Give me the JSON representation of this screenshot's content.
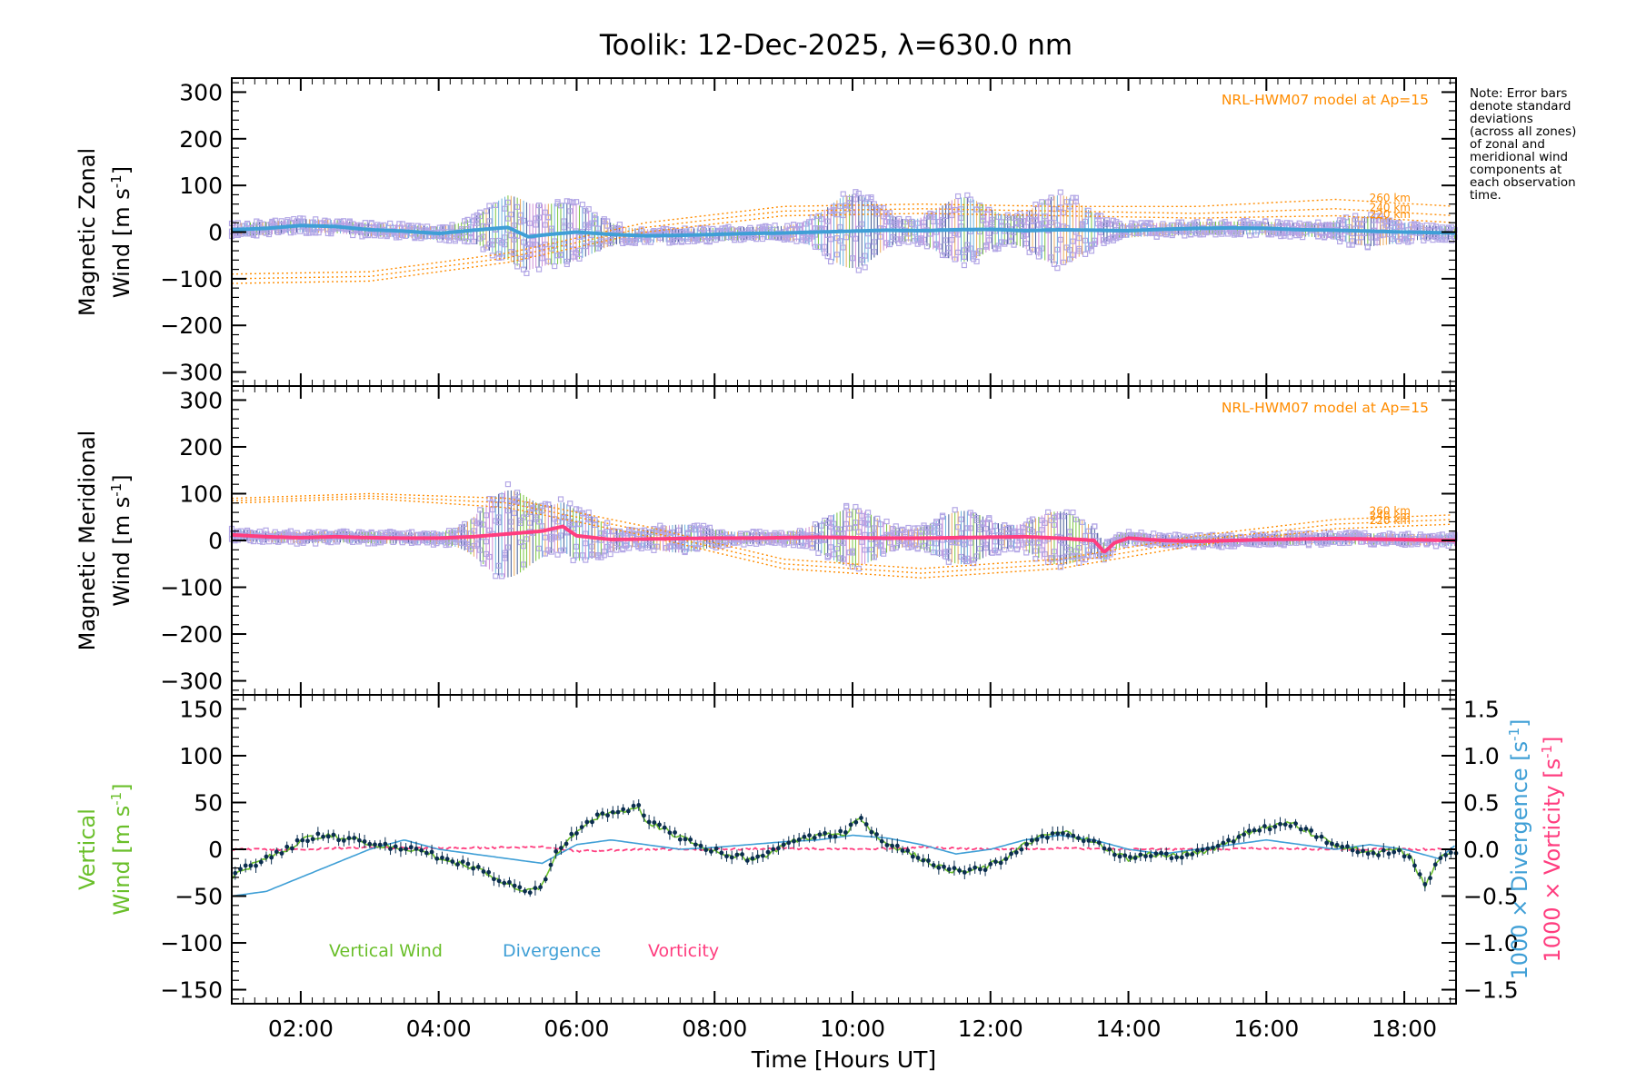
{
  "title": "Toolik: 12-Dec-2025, λ=630.0 nm",
  "note_lines": [
    "Note: Error bars",
    "denote standard",
    "deviations",
    "(across all zones)",
    "of zonal and",
    "meridional wind",
    "components at",
    "each observation",
    "time."
  ],
  "colors": {
    "zonal": "#3f9fd6",
    "meridional": "#ff3d7f",
    "vertical": "#6abf2a",
    "divergence": "#3f9fd6",
    "vorticity": "#ff3d7f",
    "model": "#ff8c00",
    "scatter": "#b3a7e6",
    "points": "#0b2e4f"
  },
  "chart_data": [
    {
      "type": "line",
      "panel": "zonal",
      "ylabel_line1": "Magnetic Zonal",
      "ylabel_line2": "Wind [m s",
      "ylabel_sup": "-1",
      "ylabel_close": "]",
      "ylim": [
        -330,
        330
      ],
      "xlim": [
        1.0,
        18.75
      ],
      "yticks": [
        300,
        200,
        100,
        0,
        -100,
        -200,
        -300
      ],
      "ytick_labels": [
        "300",
        "200",
        "100",
        "0",
        "−100",
        "−200",
        "−300"
      ],
      "model_label": "NRL-HWM07 model at Ap=15",
      "altitude_labels": [
        "260 km",
        "240 km",
        "220 km"
      ],
      "series": [
        {
          "name": "Zonal wind",
          "x": [
            1.0,
            1.5,
            2.0,
            2.5,
            3.0,
            3.5,
            4.0,
            4.5,
            5.0,
            5.3,
            5.6,
            6.0,
            6.5,
            7.0,
            7.5,
            8.0,
            8.5,
            9.0,
            9.5,
            10.0,
            10.5,
            11.0,
            11.5,
            12.0,
            12.5,
            13.0,
            13.5,
            14.0,
            14.5,
            15.0,
            15.5,
            16.0,
            16.5,
            17.0,
            17.5,
            18.0,
            18.75
          ],
          "y": [
            5,
            8,
            14,
            12,
            5,
            2,
            -3,
            4,
            10,
            -10,
            -5,
            0,
            -5,
            -8,
            -7,
            -5,
            -3,
            -2,
            0,
            2,
            4,
            3,
            5,
            6,
            3,
            5,
            4,
            3,
            6,
            8,
            9,
            8,
            5,
            4,
            2,
            0,
            -2
          ]
        },
        {
          "name": "HWM07 260 km",
          "x": [
            1,
            3,
            5,
            7,
            9,
            11,
            13,
            15,
            17,
            18.75
          ],
          "y": [
            -90,
            -85,
            -45,
            20,
            55,
            60,
            55,
            55,
            70,
            55
          ]
        },
        {
          "name": "HWM07 240 km",
          "x": [
            1,
            3,
            5,
            7,
            9,
            11,
            13,
            15,
            17,
            18.75
          ],
          "y": [
            -100,
            -95,
            -55,
            10,
            45,
            50,
            45,
            40,
            50,
            35
          ]
        },
        {
          "name": "HWM07 220 km",
          "x": [
            1,
            3,
            5,
            7,
            9,
            11,
            13,
            15,
            17,
            18.75
          ],
          "y": [
            -110,
            -105,
            -65,
            0,
            35,
            40,
            35,
            30,
            35,
            20
          ]
        }
      ]
    },
    {
      "type": "line",
      "panel": "meridional",
      "ylabel_line1": "Magnetic Meridional",
      "ylabel_line2": "Wind [m s",
      "ylabel_sup": "-1",
      "ylabel_close": "]",
      "ylim": [
        -330,
        330
      ],
      "xlim": [
        1.0,
        18.75
      ],
      "yticks": [
        300,
        200,
        100,
        0,
        -100,
        -200,
        -300
      ],
      "ytick_labels": [
        "300",
        "200",
        "100",
        "0",
        "−100",
        "−200",
        "−300"
      ],
      "model_label": "NRL-HWM07 model at Ap=15",
      "altitude_labels": [
        "260 km",
        "240 km",
        "220 km"
      ],
      "series": [
        {
          "name": "Meridional wind",
          "x": [
            1.0,
            1.5,
            2.0,
            2.5,
            3.0,
            3.5,
            4.0,
            4.5,
            5.0,
            5.5,
            5.8,
            6.0,
            6.5,
            7.0,
            7.5,
            8.0,
            8.5,
            9.0,
            9.5,
            10.0,
            10.5,
            11.0,
            11.5,
            12.0,
            12.5,
            13.0,
            13.5,
            13.65,
            13.8,
            14.0,
            14.5,
            15.0,
            15.5,
            16.0,
            16.5,
            17.0,
            17.5,
            18.0,
            18.75
          ],
          "y": [
            12,
            8,
            6,
            8,
            6,
            5,
            5,
            8,
            14,
            20,
            30,
            10,
            2,
            3,
            4,
            5,
            5,
            6,
            7,
            6,
            5,
            5,
            6,
            7,
            8,
            5,
            0,
            -25,
            -5,
            5,
            0,
            -2,
            0,
            2,
            3,
            4,
            3,
            2,
            0
          ]
        },
        {
          "name": "HWM07 260 km",
          "x": [
            1,
            3,
            5,
            7,
            9,
            11,
            13,
            15,
            17,
            18.75
          ],
          "y": [
            90,
            100,
            90,
            30,
            -40,
            -60,
            -40,
            10,
            45,
            55
          ]
        },
        {
          "name": "HWM07 240 km",
          "x": [
            1,
            3,
            5,
            7,
            9,
            11,
            13,
            15,
            17,
            18.75
          ],
          "y": [
            85,
            95,
            80,
            20,
            -50,
            -70,
            -50,
            0,
            35,
            45
          ]
        },
        {
          "name": "HWM07 220 km",
          "x": [
            1,
            3,
            5,
            7,
            9,
            11,
            13,
            15,
            17,
            18.75
          ],
          "y": [
            80,
            90,
            70,
            10,
            -60,
            -80,
            -60,
            -10,
            25,
            35
          ]
        }
      ]
    },
    {
      "type": "line",
      "panel": "vertical",
      "ylabel_line1": "Vertical",
      "ylabel_line2": "Wind [m s",
      "ylabel_sup": "-1",
      "ylabel_close": "]",
      "ylim": [
        -165,
        165
      ],
      "xlim": [
        1.0,
        18.75
      ],
      "yticks": [
        150,
        100,
        50,
        0,
        -50,
        -100,
        -150
      ],
      "ytick_labels": [
        "150",
        "100",
        "50",
        "0",
        "−50",
        "−100",
        "−150"
      ],
      "y2lim": [
        -1.65,
        1.65
      ],
      "y2ticks": [
        1.5,
        1.0,
        0.5,
        0.0,
        -0.5,
        -1.0,
        -1.5
      ],
      "y2tick_labels": [
        "1.5",
        "1.0",
        "0.5",
        "0.0",
        "−0.5",
        "−1.0",
        "−1.5"
      ],
      "y2label_div": "1000 × Divergence [s",
      "y2label_vort": "1000 × Vorticity [s",
      "xticks": [
        2,
        4,
        6,
        8,
        10,
        12,
        14,
        16,
        18
      ],
      "xtick_labels": [
        "02:00",
        "04:00",
        "06:00",
        "08:00",
        "10:00",
        "12:00",
        "14:00",
        "16:00",
        "18:00"
      ],
      "xlabel": "Time [Hours UT]",
      "legend": [
        "Vertical Wind",
        "Divergence",
        "Vorticity"
      ],
      "series": [
        {
          "name": "Vertical Wind",
          "axis": "left",
          "x": [
            1.0,
            1.2,
            1.5,
            1.8,
            2.0,
            2.3,
            2.6,
            2.9,
            3.0,
            3.3,
            3.6,
            3.9,
            4.0,
            4.3,
            4.6,
            4.9,
            5.1,
            5.3,
            5.5,
            5.7,
            6.0,
            6.3,
            6.6,
            6.9,
            7.0,
            7.3,
            7.6,
            7.9,
            8.2,
            8.5,
            8.8,
            9.0,
            9.3,
            9.6,
            9.9,
            10.1,
            10.4,
            10.7,
            11.0,
            11.3,
            11.6,
            11.9,
            12.2,
            12.5,
            12.8,
            13.1,
            13.4,
            13.7,
            14.0,
            14.3,
            14.6,
            14.9,
            15.2,
            15.5,
            15.8,
            16.1,
            16.4,
            16.7,
            17.0,
            17.3,
            17.6,
            17.9,
            18.1,
            18.3,
            18.5,
            18.75
          ],
          "y": [
            -30,
            -20,
            -10,
            0,
            10,
            15,
            12,
            10,
            5,
            2,
            0,
            -5,
            -10,
            -15,
            -20,
            -35,
            -40,
            -45,
            -40,
            -5,
            20,
            35,
            40,
            45,
            30,
            20,
            10,
            0,
            -5,
            -10,
            -5,
            5,
            12,
            15,
            18,
            35,
            10,
            0,
            -10,
            -20,
            -25,
            -20,
            -10,
            5,
            15,
            18,
            10,
            0,
            -10,
            -5,
            -8,
            -5,
            0,
            10,
            20,
            25,
            28,
            15,
            5,
            0,
            -5,
            0,
            -10,
            -40,
            -10,
            -5
          ]
        },
        {
          "name": "Divergence",
          "axis": "right",
          "x": [
            1.0,
            1.5,
            2.0,
            2.5,
            3.0,
            3.5,
            4.0,
            4.5,
            5.0,
            5.5,
            6.0,
            6.5,
            7.0,
            7.5,
            8.0,
            8.5,
            9.0,
            9.5,
            10.0,
            10.5,
            11.0,
            11.5,
            12.0,
            12.5,
            13.0,
            13.5,
            14.0,
            14.5,
            15.0,
            15.5,
            16.0,
            16.5,
            17.0,
            17.5,
            18.0,
            18.5,
            18.75
          ],
          "y": [
            -0.5,
            -0.45,
            -0.3,
            -0.15,
            0.0,
            0.1,
            0.0,
            -0.05,
            -0.1,
            -0.15,
            0.05,
            0.1,
            0.05,
            0.0,
            0.02,
            0.05,
            0.08,
            0.1,
            0.15,
            0.12,
            0.05,
            -0.05,
            0.0,
            0.1,
            0.15,
            0.1,
            0.0,
            -0.05,
            0.0,
            0.05,
            0.1,
            0.05,
            0.0,
            0.05,
            0.0,
            -0.1,
            0.05
          ]
        },
        {
          "name": "Vorticity",
          "axis": "right",
          "x": [
            1.0,
            2.0,
            3.0,
            4.0,
            5.0,
            5.5,
            6.0,
            7.0,
            8.0,
            9.0,
            10.0,
            11.0,
            12.0,
            13.0,
            14.0,
            15.0,
            16.0,
            17.0,
            18.0,
            18.75
          ],
          "y": [
            0.0,
            0.0,
            0.02,
            0.01,
            0.02,
            0.03,
            -0.02,
            0.0,
            0.0,
            0.01,
            0.0,
            0.02,
            0.0,
            0.01,
            0.0,
            0.0,
            0.01,
            0.0,
            0.0,
            0.0
          ]
        }
      ]
    }
  ]
}
